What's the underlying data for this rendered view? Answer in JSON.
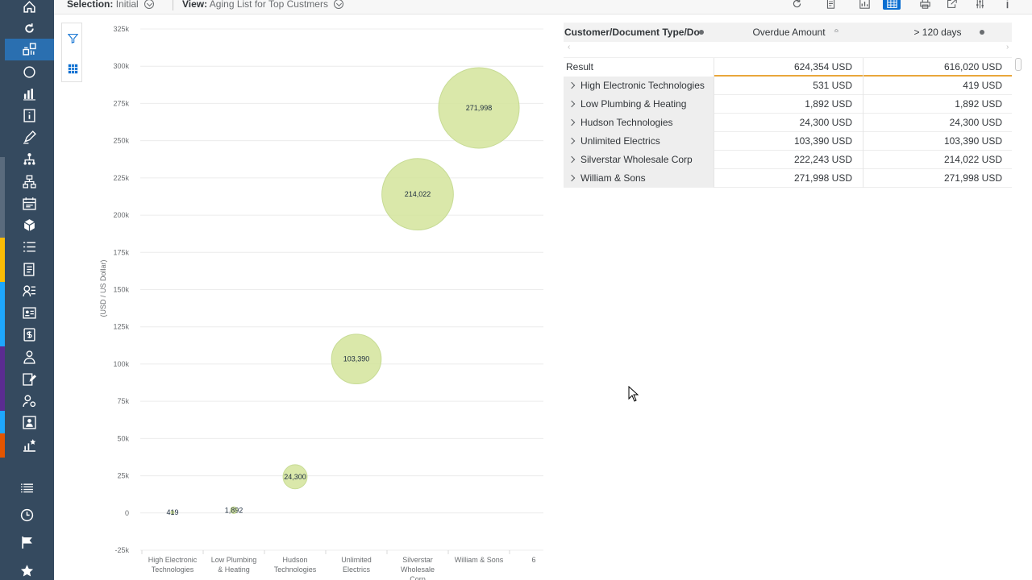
{
  "toolbar": {
    "selection_label": "Selection:",
    "selection_value": "Initial",
    "view_label": "View:",
    "view_value": "Aging List for Top Custmers",
    "icons": [
      "refresh-icon",
      "document-icon",
      "chart-icon",
      "table-icon",
      "print-icon",
      "export-icon",
      "settings-icon",
      "info-icon"
    ]
  },
  "colors": {
    "rail_bg": "#354a5f",
    "rail_active": "#2a6fb0",
    "accent_blue": "#0a6ed1",
    "bubble_fill": "#d6e6a1",
    "bubble_stroke": "#c2d88a",
    "result_line": "#e9a73b"
  },
  "rail": {
    "stripes": [
      {
        "color": "#5a6b7d"
      },
      {
        "color": "#fbbc05"
      },
      {
        "color": "#1ea7fd"
      },
      {
        "color": "#5b2c91"
      },
      {
        "color": "#1ea7fd"
      },
      {
        "color": "#e35500"
      }
    ],
    "items": [
      "home-icon",
      "refresh-icon",
      "analytics-icon",
      "circle-icon",
      "bar-chart-icon",
      "info-icon",
      "edit-icon",
      "hierarchy-icon",
      "org-chart-icon",
      "calendar-icon",
      "cube-icon",
      "list-icon",
      "document-list-icon",
      "person-list-icon",
      "contact-card-icon",
      "document-money-icon",
      "user-icon",
      "edit-document-icon",
      "settings-person-icon",
      "person-card-icon",
      "favorite-chart-icon"
    ],
    "bottom_items": [
      "list-view-icon",
      "history-icon",
      "flag-icon",
      "favorite-icon"
    ]
  },
  "side_tools": [
    "filter-icon",
    "grid-icon"
  ],
  "chart_data": {
    "type": "bubble",
    "categories": [
      "High Electronic Technologies",
      "Low Plumbing & Heating",
      "Hudson Technologies",
      "Unlimited Electrics",
      "Silverstar Wholesale Corp",
      "William & Sons"
    ],
    "category_labels": [
      [
        "High Electronic",
        "Technologies"
      ],
      [
        "Low Plumbing",
        "& Heating"
      ],
      [
        "Hudson",
        "Technologies"
      ],
      [
        "Unlimited",
        "Electrics"
      ],
      [
        "Silverstar",
        "Wholesale",
        "Corp"
      ],
      [
        "William & Sons"
      ]
    ],
    "extra_category_label": "6",
    "values": [
      419,
      1892,
      24300,
      103390,
      214022,
      271998
    ],
    "data_labels": [
      "419",
      "1,892",
      "24,300",
      "103,390",
      "214,022",
      "271,998"
    ],
    "ylabel": "(USD / US Dollar)",
    "ylim": [
      -25000,
      325000
    ],
    "yticks": [
      -25000,
      0,
      25000,
      50000,
      75000,
      100000,
      125000,
      150000,
      175000,
      200000,
      225000,
      250000,
      275000,
      300000,
      325000
    ],
    "ytick_labels": [
      "-25k",
      "0",
      "25k",
      "50k",
      "75k",
      "100k",
      "125k",
      "150k",
      "175k",
      "200k",
      "225k",
      "250k",
      "275k",
      "300k",
      "325k"
    ],
    "grid": true
  },
  "table": {
    "headers": [
      "Customer/Document Type/Do",
      "Overdue Amount",
      "> 120 days"
    ],
    "scroll_left": "‹",
    "scroll_right": "›",
    "result": {
      "label": "Result",
      "overdue": "624,354 USD",
      "over120": "616,020 USD"
    },
    "rows": [
      {
        "label": "High Electronic Technologies",
        "overdue": "531 USD",
        "over120": "419 USD"
      },
      {
        "label": "Low Plumbing & Heating",
        "overdue": "1,892 USD",
        "over120": "1,892 USD"
      },
      {
        "label": "Hudson Technologies",
        "overdue": "24,300 USD",
        "over120": "24,300 USD"
      },
      {
        "label": "Unlimited Electrics",
        "overdue": "103,390 USD",
        "over120": "103,390 USD"
      },
      {
        "label": "Silverstar Wholesale Corp",
        "overdue": "222,243 USD",
        "over120": "214,022 USD"
      },
      {
        "label": "William & Sons",
        "overdue": "271,998 USD",
        "over120": "271,998 USD"
      }
    ]
  }
}
